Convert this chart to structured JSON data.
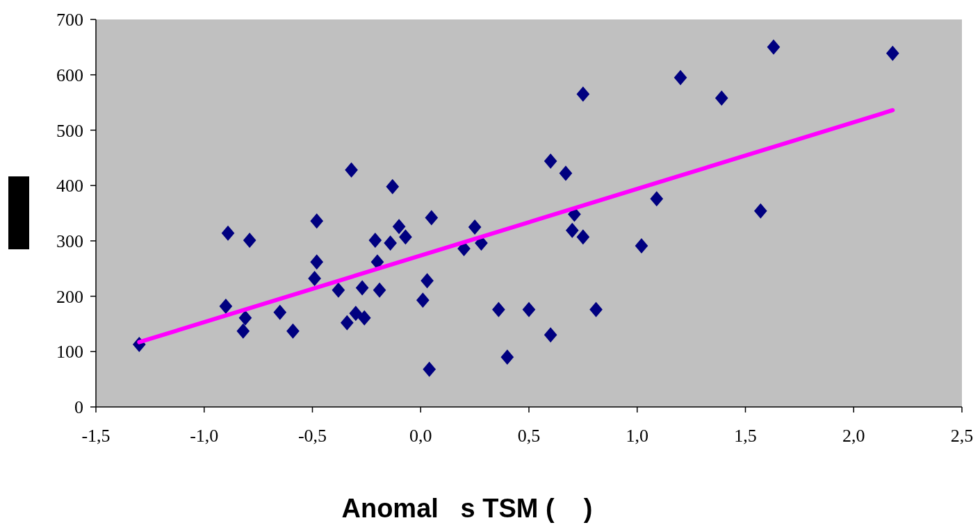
{
  "chart_data": {
    "type": "scatter",
    "xlabel": "Anomal   s TSM (    )",
    "xlim": [
      -1.5,
      2.5
    ],
    "ylim": [
      0,
      700
    ],
    "xticks": [
      {
        "value": -1.5,
        "label": "-1,5"
      },
      {
        "value": -1,
        "label": "-1,0"
      },
      {
        "value": -0.5,
        "label": "-0,5"
      },
      {
        "value": 0,
        "label": "0,0"
      },
      {
        "value": 0.5,
        "label": "0,5"
      },
      {
        "value": 1,
        "label": "1,0"
      },
      {
        "value": 1.5,
        "label": "1,5"
      },
      {
        "value": 2,
        "label": "2,0"
      },
      {
        "value": 2.5,
        "label": "2,5"
      }
    ],
    "yticks": [
      0,
      100,
      200,
      300,
      400,
      500,
      600,
      700
    ],
    "grid": false,
    "series": [
      {
        "type": "scatter",
        "color": "#000080",
        "marker": "diamond",
        "x": [
          -1.3,
          -0.9,
          -0.89,
          -0.81,
          -0.82,
          -0.79,
          -0.65,
          -0.59,
          -0.49,
          -0.48,
          -0.48,
          -0.38,
          -0.34,
          -0.32,
          -0.3,
          -0.27,
          -0.26,
          -0.21,
          -0.2,
          -0.19,
          -0.14,
          -0.13,
          -0.1,
          -0.07,
          0.01,
          0.03,
          0.04,
          0.05,
          0.2,
          0.25,
          0.28,
          0.36,
          0.4,
          0.5,
          0.6,
          0.6,
          0.67,
          0.7,
          0.71,
          0.75,
          0.75,
          0.81,
          1.02,
          1.09,
          1.2,
          1.39,
          1.57,
          1.63,
          2.18
        ],
        "values": [
          113,
          182,
          314,
          161,
          137,
          301,
          171,
          137,
          232,
          262,
          336,
          211,
          152,
          428,
          169,
          215,
          161,
          301,
          262,
          211,
          296,
          398,
          326,
          307,
          193,
          228,
          68,
          342,
          286,
          325,
          296,
          176,
          90,
          176,
          130,
          444,
          422,
          319,
          348,
          307,
          565,
          176,
          291,
          376,
          595,
          558,
          354,
          650,
          639
        ]
      },
      {
        "type": "line",
        "color": "#ff00ff",
        "line_style": "solid",
        "x": [
          -1.3,
          2.18
        ],
        "values": [
          117,
          536
        ]
      }
    ]
  }
}
